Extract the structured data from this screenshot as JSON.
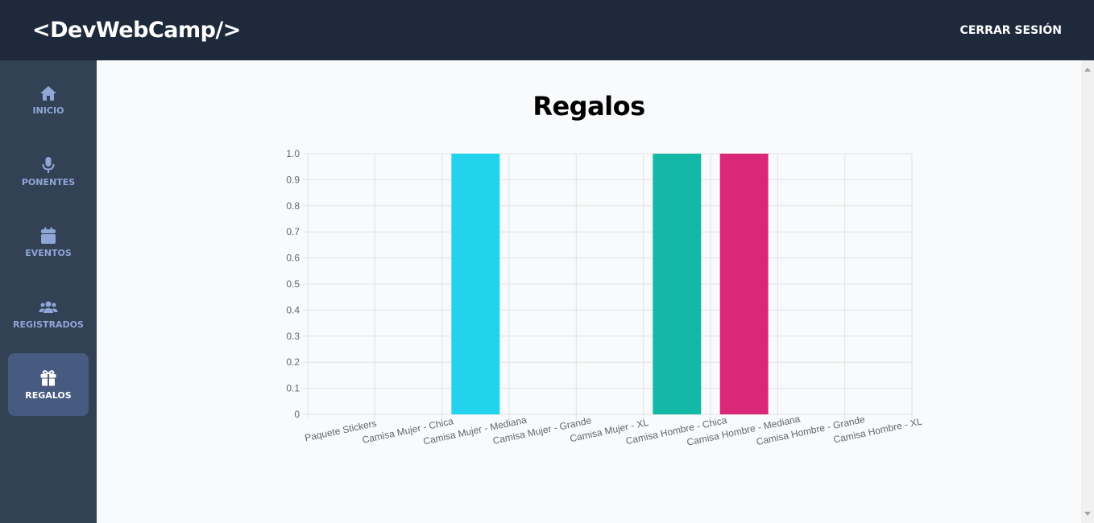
{
  "header": {
    "logo": "<DevWebCamp/>",
    "logout_label": "CERRAR SESIÓN"
  },
  "sidebar": {
    "items": [
      {
        "label": "INICIO",
        "icon": "house-icon",
        "active": false
      },
      {
        "label": "PONENTES",
        "icon": "microphone-icon",
        "active": false
      },
      {
        "label": "EVENTOS",
        "icon": "calendar-icon",
        "active": false
      },
      {
        "label": "REGISTRADOS",
        "icon": "users-icon",
        "active": false
      },
      {
        "label": "REGALOS",
        "icon": "gift-icon",
        "active": true
      }
    ]
  },
  "main": {
    "title": "Regalos"
  },
  "colors": {
    "header_bg": "#1e293b",
    "sidebar_bg": "#334155",
    "sidebar_active_bg": "#475a80",
    "sidebar_text": "#8fa6d6"
  },
  "chart_data": {
    "type": "bar",
    "categories": [
      "Paquete Stickers",
      "Camisa Mujer - Chica",
      "Camisa Mujer - Mediana",
      "Camisa Mujer - Grande",
      "Camisa Mujer - XL",
      "Camisa Hombre - Chica",
      "Camisa Hombre - Mediana",
      "Camisa Hombre - Grande",
      "Camisa Hombre - XL"
    ],
    "values": [
      0,
      0,
      1,
      0,
      0,
      1,
      1,
      0,
      0
    ],
    "colors": [
      "#ea580c",
      "#84cc16",
      "#22d3ee",
      "#a855f7",
      "#ef4444",
      "#14b8a6",
      "#db2777",
      "#e11d48",
      "#7e22ce"
    ],
    "ylim": [
      0,
      1
    ],
    "yticks": [
      0,
      0.1,
      0.2,
      0.3,
      0.4,
      0.5,
      0.6,
      0.7,
      0.8,
      0.9,
      1.0
    ],
    "ytick_labels": [
      "0",
      "0.1",
      "0.2",
      "0.3",
      "0.4",
      "0.5",
      "0.6",
      "0.7",
      "0.8",
      "0.9",
      "1.0"
    ],
    "grid": true,
    "title": "",
    "xlabel": "",
    "ylabel": ""
  }
}
